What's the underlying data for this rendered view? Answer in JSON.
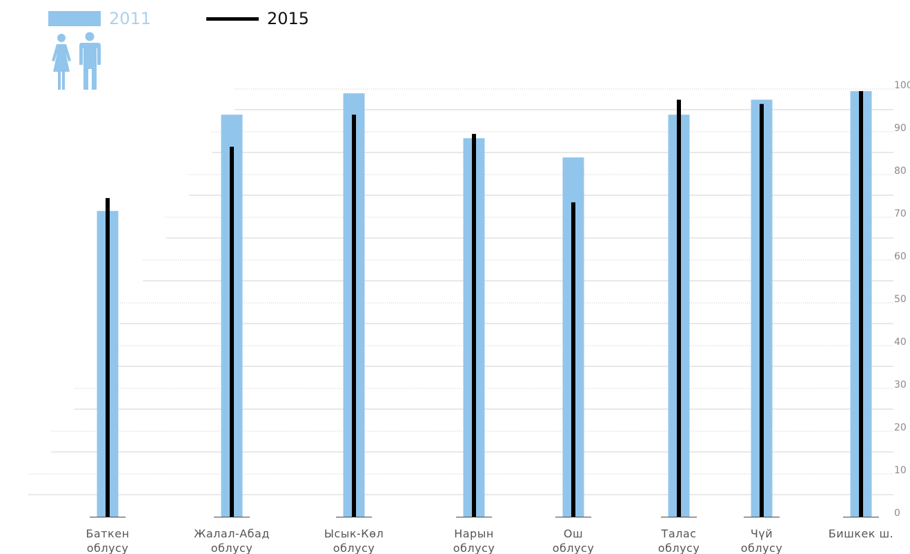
{
  "legend": {
    "items": [
      {
        "label": "2011",
        "color": "#92c5eb",
        "marker": "bar"
      },
      {
        "label": "2015",
        "color": "#000000",
        "marker": "line"
      }
    ],
    "icon": "woman-man-icon"
  },
  "chart_data": {
    "type": "bar",
    "categories": [
      {
        "line1": "Баткен",
        "line2": "облусу"
      },
      {
        "line1": "Жалал-Абад",
        "line2": "облусу"
      },
      {
        "line1": "Ысык-Көл",
        "line2": "облусу"
      },
      {
        "line1": "Нарын",
        "line2": "облусу"
      },
      {
        "line1": "Ош",
        "line2": "облусу"
      },
      {
        "line1": "Талас",
        "line2": "облусу"
      },
      {
        "line1": "Чүй",
        "line2": "облусу"
      },
      {
        "line1": "Бишкек ш.",
        "line2": ""
      }
    ],
    "series": [
      {
        "name": "2011",
        "marker": "bar",
        "color": "#92c5eb",
        "values": [
          71.5,
          94.0,
          99.0,
          88.5,
          84.0,
          94.0,
          97.5,
          99.5
        ]
      },
      {
        "name": "2015",
        "marker": "line",
        "color": "#000000",
        "values": [
          74.5,
          86.5,
          94.0,
          89.5,
          73.5,
          97.5,
          96.5,
          99.5
        ]
      }
    ],
    "y_ticks": [
      "0",
      "10",
      "20",
      "30",
      "40",
      "50",
      "60",
      "70",
      "80",
      "90",
      "100"
    ],
    "ylim": [
      0,
      100
    ],
    "grid": true,
    "legend_position": "top-left"
  }
}
